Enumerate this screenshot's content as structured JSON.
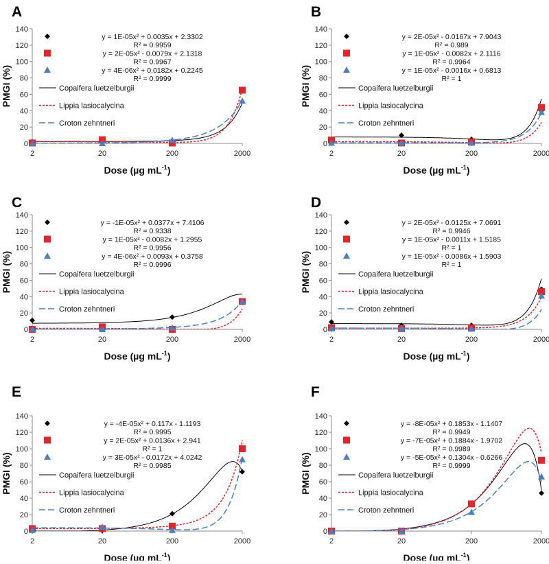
{
  "colors": {
    "copaifera": "#000000",
    "lippia": "#e3262b",
    "croton": "#4a7fc1",
    "axis": "#888888"
  },
  "chart_data": [
    {
      "panel": "A",
      "type": "scatter",
      "x_axis_scale": "log",
      "categories": [
        "2",
        "20",
        "200",
        "2000"
      ],
      "x": [
        2,
        20,
        200,
        2000
      ],
      "xlabel": "Dose (µg mL",
      "xlabel_sup": "-1",
      "xlabel_close": ")",
      "ylabel": "PMGI (%)",
      "ylim": [
        0,
        140
      ],
      "yticks": [
        "0",
        "20",
        "40",
        "60",
        "80",
        "100",
        "120",
        "140"
      ],
      "grid": false,
      "legend": "left",
      "series": [
        {
          "name": "Copaifera luetzelburgii",
          "marker": "diamond",
          "line": "solid",
          "values": [
            2,
            2,
            3,
            65
          ],
          "coef": [
            1e-05,
            0.0035,
            2.3302
          ],
          "equation": "y = 1E-05x² + 0.0035x + 2.3302",
          "r2": "R² = 0.9959"
        },
        {
          "name": "Lippia lasiocalycina",
          "marker": "square",
          "line": "dotted",
          "values": [
            0.5,
            4.5,
            0.5,
            65
          ],
          "coef": [
            2e-05,
            -0.0079,
            2.1318
          ],
          "equation": "y = 2E-05x² - 0.0079x + 2.1318",
          "r2": "R² = 0.9967"
        },
        {
          "name": "Croton zehntneri",
          "marker": "triangle",
          "line": "dashed",
          "values": [
            0,
            0,
            4,
            52
          ],
          "coef": [
            4e-06,
            0.0182,
            0.2245
          ],
          "equation": "y = 4E-06x² + 0.0182x + 0.2245",
          "r2": "R² = 0.9999"
        }
      ]
    },
    {
      "panel": "B",
      "type": "scatter",
      "x_axis_scale": "log",
      "categories": [
        "2",
        "20",
        "200",
        "2000"
      ],
      "x": [
        2,
        20,
        200,
        2000
      ],
      "xlabel": "Dose (µg mL",
      "xlabel_sup": "-1",
      "xlabel_close": ")",
      "ylabel": "PMGI (%)",
      "ylim": [
        0,
        140
      ],
      "yticks": [
        "0",
        "20",
        "40",
        "60",
        "80",
        "100",
        "120",
        "140"
      ],
      "grid": false,
      "legend": "left",
      "series": [
        {
          "name": "Copaifera luetzelburgii",
          "marker": "diamond",
          "line": "solid",
          "values": [
            5,
            10,
            5,
            40
          ],
          "coef": [
            2e-05,
            -0.0167,
            7.9043
          ],
          "equation": "y = 2E-05x² - 0.0167x + 7.9043",
          "r2": "R² = 0.989"
        },
        {
          "name": "Lippia lasiocalycina",
          "marker": "square",
          "line": "dotted",
          "values": [
            4,
            0.5,
            2,
            44
          ],
          "coef": [
            1e-05,
            -0.0082,
            2.1116
          ],
          "equation": "y = 1E-05x² - 0.0082x + 2.1116",
          "r2": "R² = 0.9964"
        },
        {
          "name": "Croton zehntneri",
          "marker": "triangle",
          "line": "dashed",
          "values": [
            0.5,
            0.5,
            0.5,
            38
          ],
          "coef": [
            1e-05,
            -0.0016,
            0.6813
          ],
          "equation": "y = 1E-05x² - 0.0016x + 0.6813",
          "r2": "R² = 1"
        }
      ]
    },
    {
      "panel": "C",
      "type": "scatter",
      "x_axis_scale": "log",
      "categories": [
        "2",
        "20",
        "200",
        "2000"
      ],
      "x": [
        2,
        20,
        200,
        2000
      ],
      "xlabel": "Dose (µg mL",
      "xlabel_sup": "-1",
      "xlabel_close": ")",
      "ylabel": "PMGI (%)",
      "ylim": [
        0,
        140
      ],
      "yticks": [
        "0",
        "20",
        "40",
        "60",
        "80",
        "100",
        "120",
        "140"
      ],
      "grid": false,
      "legend": "left",
      "series": [
        {
          "name": "Copaifera luetzelburgii",
          "marker": "diamond",
          "line": "solid",
          "values": [
            11,
            2,
            15,
            34
          ],
          "coef": [
            -1e-05,
            0.0377,
            7.4106
          ],
          "equation": "y = -1E-05x² + 0.0377x + 7.4106",
          "r2": "R² = 0.9338"
        },
        {
          "name": "Lippia lasiocalycina",
          "marker": "square",
          "line": "dotted",
          "values": [
            0,
            3,
            0,
            34
          ],
          "coef": [
            1e-05,
            -0.0082,
            1.2955
          ],
          "equation": "y = 1E-05x² - 0.0082x + 1.2955",
          "r2": "R² = 0.9956"
        },
        {
          "name": "Croton zehntneri",
          "marker": "triangle",
          "line": "dashed",
          "values": [
            0,
            0,
            2,
            34
          ],
          "coef": [
            4e-06,
            0.0093,
            0.3758
          ],
          "equation": "y = 4E-06x² + 0.0093x + 0.3758",
          "r2": "R² = 0.9996"
        }
      ]
    },
    {
      "panel": "D",
      "type": "scatter",
      "x_axis_scale": "log",
      "categories": [
        "2",
        "20",
        "200",
        "2000"
      ],
      "x": [
        2,
        20,
        200,
        2000
      ],
      "xlabel": "Dose (µg mL",
      "xlabel_sup": "-1",
      "xlabel_close": ")",
      "ylabel": "PMGI (%)",
      "ylim": [
        0,
        140
      ],
      "yticks": [
        "0",
        "20",
        "40",
        "60",
        "80",
        "100",
        "120",
        "140"
      ],
      "grid": false,
      "legend": "left",
      "series": [
        {
          "name": "Copaifera luetzelburgii",
          "marker": "diamond",
          "line": "solid",
          "values": [
            9,
            5,
            5,
            49
          ],
          "coef": [
            2e-05,
            -0.0125,
            7.0691
          ],
          "equation": "y = 2E-05x² - 0.0125x + 7.0691",
          "r2": "R² = 0.9946"
        },
        {
          "name": "Lippia lasiocalycina",
          "marker": "square",
          "line": "dotted",
          "values": [
            2,
            1,
            2,
            46
          ],
          "coef": [
            1e-05,
            -0.0011,
            1.5185
          ],
          "equation": "y = 1E-05x² - 0.0011x + 1.5185",
          "r2": "R² = 1"
        },
        {
          "name": "Croton zehntneri",
          "marker": "triangle",
          "line": "dashed",
          "values": [
            1,
            1,
            0.5,
            41
          ],
          "coef": [
            1e-05,
            -0.0086,
            1.5903
          ],
          "equation": "y = 1E-05x² - 0.0086x + 1.5903",
          "r2": "R² = 1"
        }
      ]
    },
    {
      "panel": "E",
      "type": "scatter",
      "x_axis_scale": "log",
      "categories": [
        "2",
        "20",
        "200",
        "2000"
      ],
      "x": [
        2,
        20,
        200,
        2000
      ],
      "xlabel": "Dose (µg mL",
      "xlabel_sup": "-1",
      "xlabel_close": ")",
      "ylabel": "PMGI (%)",
      "ylim": [
        0,
        140
      ],
      "yticks": [
        "0",
        "20",
        "40",
        "60",
        "80",
        "100",
        "120",
        "140"
      ],
      "grid": false,
      "legend": "left",
      "series": [
        {
          "name": "Copaifera luetzelburgii",
          "marker": "diamond",
          "line": "solid",
          "values": [
            0.5,
            0.5,
            21,
            72
          ],
          "coef": [
            -4e-05,
            0.117,
            -1.1193
          ],
          "equation": "y = -4E-05x² + 0.117x - 1.1193",
          "r2": "R² = 0.9995"
        },
        {
          "name": "Lippia lasiocalycina",
          "marker": "square",
          "line": "dotted",
          "values": [
            3,
            3,
            6,
            100
          ],
          "coef": [
            2e-05,
            0.0136,
            2.941
          ],
          "equation": "y = 2E-05x² + 0.0136x + 2.941",
          "r2": "R² = 1"
        },
        {
          "name": "Croton zehntneri",
          "marker": "triangle",
          "line": "dashed",
          "values": [
            1,
            5,
            1,
            87
          ],
          "coef": [
            3e-05,
            -0.0172,
            4.0242
          ],
          "equation": "y = 3E-05x² - 0.0172x + 4.0242",
          "r2": "R² = 0.9985"
        }
      ]
    },
    {
      "panel": "F",
      "type": "scatter",
      "x_axis_scale": "log",
      "categories": [
        "2",
        "20",
        "200",
        "2000"
      ],
      "x": [
        2,
        20,
        200,
        2000
      ],
      "xlabel": "Dose (µg mL",
      "xlabel_sup": "-1",
      "xlabel_close": ")",
      "ylabel": "PMGI (%)",
      "ylim": [
        0,
        140
      ],
      "yticks": [
        "0",
        "20",
        "40",
        "60",
        "80",
        "100",
        "120",
        "140"
      ],
      "grid": false,
      "legend": "left",
      "series": [
        {
          "name": "Copaifera luetzelburgii",
          "marker": "diamond",
          "line": "solid",
          "values": [
            0,
            0,
            33,
            46
          ],
          "coef": [
            -8e-05,
            0.1853,
            -1.1407
          ],
          "equation": "y = -8E-05x² + 0.1853x - 1.1407",
          "r2": "R² = 0.9949"
        },
        {
          "name": "Lippia lasiocalycina",
          "marker": "square",
          "line": "dotted",
          "values": [
            0,
            0,
            33,
            86
          ],
          "coef": [
            -7e-05,
            0.1884,
            -1.9702
          ],
          "equation": "y = -7E-05x² + 0.1884x - 1.9702",
          "r2": "R² = 0.9989"
        },
        {
          "name": "Croton zehntneri",
          "marker": "triangle",
          "line": "dashed",
          "values": [
            0,
            0,
            23,
            66
          ],
          "coef": [
            -5e-05,
            0.1304,
            -0.6266
          ],
          "equation": "y = -5E-05x² + 0.1304x - 0.6266",
          "r2": "R² = 0.9999"
        }
      ]
    }
  ]
}
